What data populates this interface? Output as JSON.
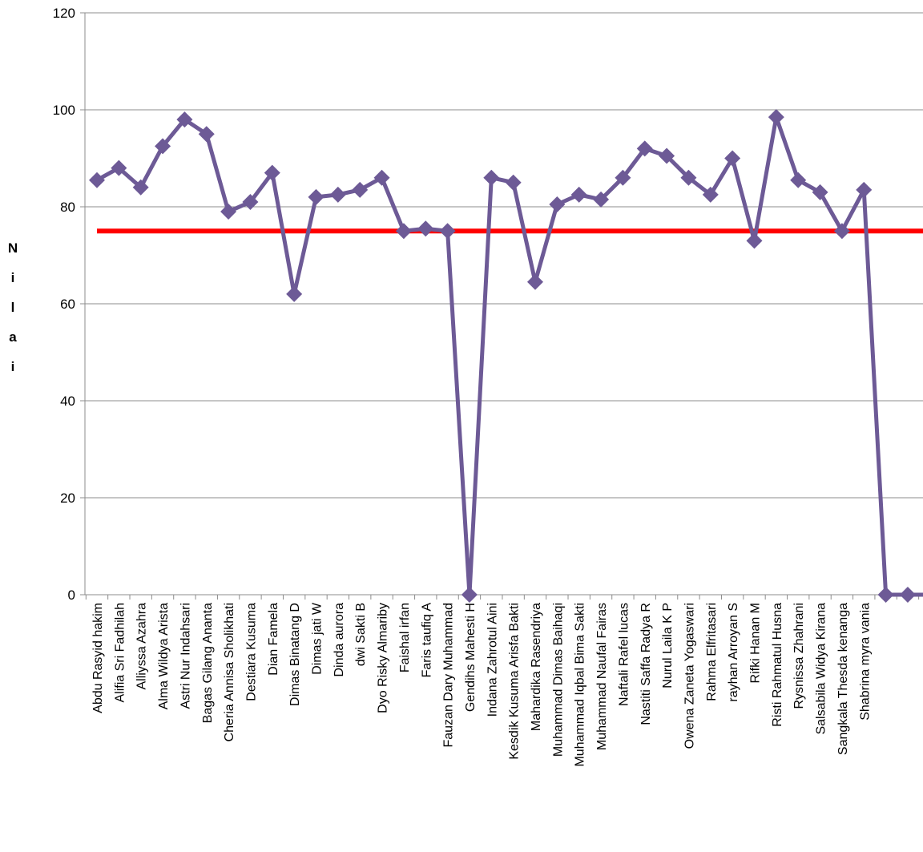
{
  "chart_data": {
    "type": "line",
    "title": "",
    "xlabel": "",
    "ylabel": "Nilai",
    "ylim": [
      0,
      120
    ],
    "yticks": [
      "0",
      "20",
      "40",
      "60",
      "80",
      "100",
      "120"
    ],
    "grid": true,
    "legend": "none",
    "categories": [
      "Abdu Rasyid hakim",
      "Alifia Sri Fadhilah",
      "Alliyssa Azahra",
      "Alma Wildya Arista",
      "Astri Nur Indahsari",
      "Bagas Gilang Ananta",
      "Cheria Annisa Sholikhati",
      "Destiara Kusuma",
      "Dian Famela",
      "Dimas Binatang D",
      "Dimas jati W",
      "Dinda aurora",
      "dwi Sakti B",
      "Dyo Risky Almariby",
      "Faishal irfan",
      "Faris taufiq A",
      "Fauzan Dary Muhammad",
      "Gendihs Mahesti H",
      "Indana Zahrotul Aini",
      "Kesdik Kusuma Arisfa Bakti",
      "Mahardika Rasendriya",
      "Muhammad Dimas Baihaqi",
      "Muhammad Iqbal Bima Sakti",
      "Muhammad Naufal Fairas",
      "Naftali Rafel lucas",
      "Nastiti Saffa Radya R",
      "Nurul Laila K P",
      "Owena Zaneta Yogaswari",
      "Rahma Elfritasari",
      "rayhan Arroyan S",
      "Rifki Hanan M",
      "Risti Rahmatul Husna",
      "Rysnissa Zhahrani",
      "Salsabila Widya Kirana",
      "Sangkala Thesda kenanga",
      "Shabrina myra vania",
      "",
      "",
      ""
    ],
    "series": [
      {
        "color": "#6d5a96",
        "values": [
          85.5,
          88,
          84,
          92.5,
          98,
          95,
          79,
          81,
          87,
          62,
          82,
          82.5,
          83.5,
          86,
          75,
          75.5,
          75,
          0,
          86,
          85,
          64.5,
          80.5,
          82.5,
          81.5,
          86,
          92,
          90.5,
          86,
          82.5,
          90,
          73,
          98.5,
          85.5,
          83,
          75,
          83.5,
          0,
          0,
          0
        ]
      },
      {
        "color": "#ff0000",
        "values": [
          75,
          75,
          75,
          75,
          75,
          75,
          75,
          75,
          75,
          75,
          75,
          75,
          75,
          75,
          75,
          75,
          75,
          75,
          75,
          75,
          75,
          75,
          75,
          75,
          75,
          75,
          75,
          75,
          75,
          75,
          75,
          75,
          75,
          75,
          75,
          75,
          75,
          75,
          75
        ]
      }
    ]
  }
}
